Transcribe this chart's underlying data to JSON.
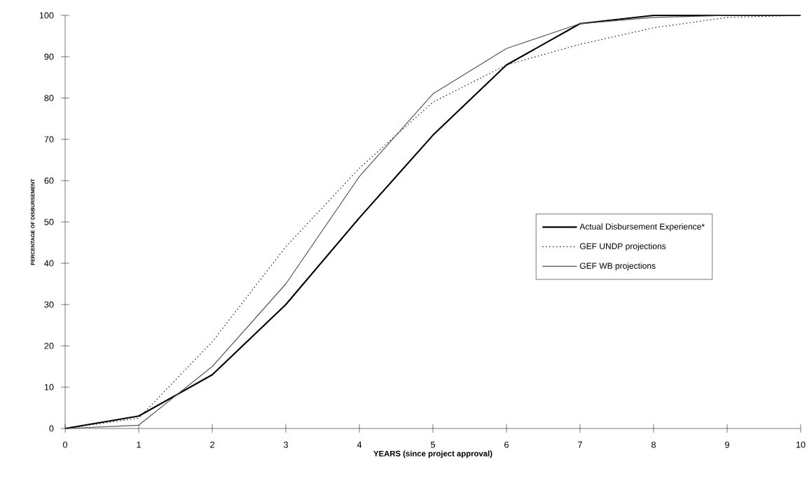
{
  "chart_data": {
    "type": "line",
    "xlabel": "YEARS (since project approval)",
    "ylabel": "PERCENTAGE OF DISBURSEMENT",
    "x": [
      0,
      1,
      2,
      3,
      4,
      5,
      6,
      7,
      8,
      9,
      10
    ],
    "series": [
      {
        "name": "Actual Disbursement Experience*",
        "color": "#000000",
        "line_style": "solid",
        "values": [
          0,
          3,
          13,
          30,
          51,
          71,
          88,
          98,
          100,
          100,
          100
        ]
      },
      {
        "name": "GEF UNDP projections",
        "color": "#222222",
        "line_style": "dotted",
        "values": [
          0,
          2.5,
          21,
          44,
          63,
          79,
          88,
          93,
          97,
          99.5,
          100
        ]
      },
      {
        "name": "GEF WB projections",
        "color": "#555555",
        "line_style": "solid",
        "values": [
          0,
          0.8,
          15,
          35,
          61,
          81,
          92,
          98,
          99.5,
          100,
          100
        ]
      }
    ],
    "xlim": [
      0,
      10
    ],
    "ylim": [
      0,
      100
    ],
    "xticks": [
      0,
      1,
      2,
      3,
      4,
      5,
      6,
      7,
      8,
      9,
      10
    ],
    "yticks": [
      0,
      10,
      20,
      30,
      40,
      50,
      60,
      70,
      80,
      90,
      100
    ],
    "grid": false,
    "legend": "right",
    "marker": "none"
  }
}
